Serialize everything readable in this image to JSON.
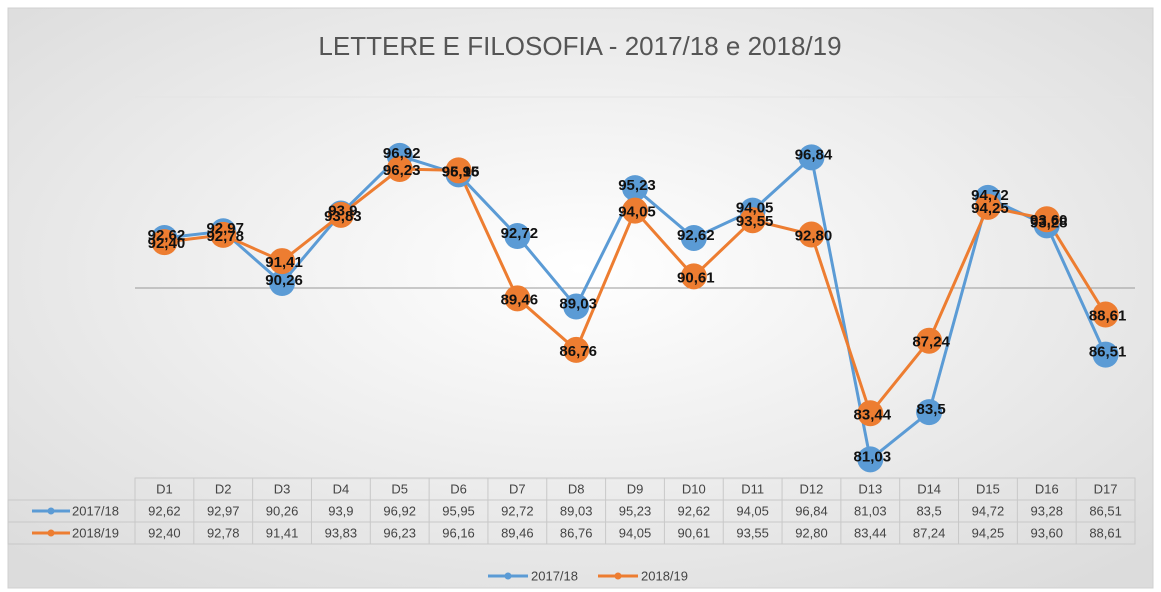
{
  "chart_data": {
    "type": "line",
    "title": "LETTERE E FILOSOFIA - 2017/18 e 2018/19",
    "categories": [
      "D1",
      "D2",
      "D3",
      "D4",
      "D5",
      "D6",
      "D7",
      "D8",
      "D9",
      "D10",
      "D11",
      "D12",
      "D13",
      "D14",
      "D15",
      "D16",
      "D17"
    ],
    "series": [
      {
        "name": "2017/18",
        "color": "#5b9bd5",
        "values": [
          92.62,
          92.97,
          90.26,
          93.9,
          96.92,
          95.95,
          92.72,
          89.03,
          95.23,
          92.62,
          94.05,
          96.84,
          81.03,
          83.5,
          94.72,
          93.28,
          86.51
        ],
        "value_labels": [
          "92,62",
          "92,97",
          "90,26",
          "93,9",
          "96,92",
          "95,95",
          "92,72",
          "89,03",
          "95,23",
          "92,62",
          "94,05",
          "96,84",
          "81,03",
          "83,5",
          "94,72",
          "93,28",
          "86,51"
        ]
      },
      {
        "name": "2018/19",
        "color": "#ed7d31",
        "values": [
          92.4,
          92.78,
          91.41,
          93.83,
          96.23,
          96.16,
          89.46,
          86.76,
          94.05,
          90.61,
          93.55,
          92.8,
          83.44,
          87.24,
          94.25,
          93.6,
          88.61
        ],
        "value_labels": [
          "92,40",
          "92,78",
          "91,41",
          "93,83",
          "96,23",
          "96,16",
          "89,46",
          "86,76",
          "94,05",
          "90,61",
          "93,55",
          "92,80",
          "83,44",
          "87,24",
          "94,25",
          "93,60",
          "88,61"
        ]
      }
    ],
    "ylim": [
      80,
      100
    ],
    "yticks": [
      80,
      90,
      100
    ],
    "grid": true
  }
}
